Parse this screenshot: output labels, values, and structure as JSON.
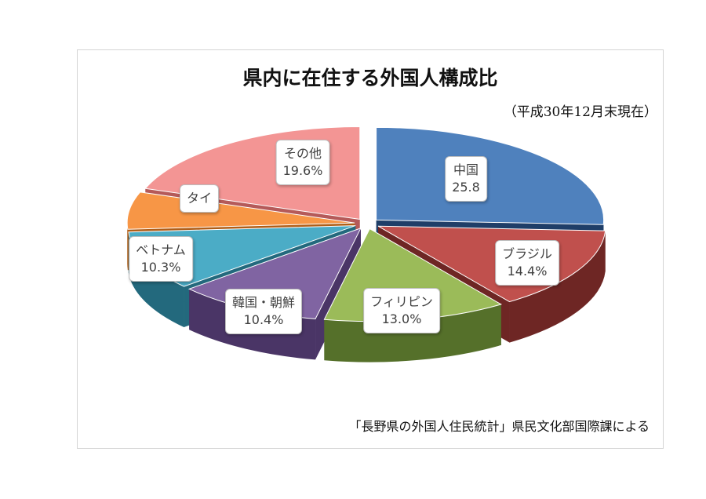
{
  "chart_data": {
    "type": "pie",
    "title": "県内に在住する外国人構成比",
    "subtitle": "（平成30年12月末現在）",
    "source": "「長野県の外国人住民統計」県民文化部国際課による",
    "slices": [
      {
        "label": "中国",
        "value": 25.8,
        "value_text": "25.8",
        "color": "#4f81bd",
        "side": "#1f3e68"
      },
      {
        "label": "ブラジル",
        "value": 14.4,
        "value_text": "14.4%",
        "color": "#c0504d",
        "side": "#6e2624"
      },
      {
        "label": "フィリピン",
        "value": 13.0,
        "value_text": "13.0%",
        "color": "#9bbb59",
        "side": "#55702a"
      },
      {
        "label": "韓国・朝鮮",
        "value": 10.4,
        "value_text": "10.4%",
        "color": "#8064a2",
        "side": "#4a3566"
      },
      {
        "label": "ベトナム",
        "value": 10.3,
        "value_text": "10.3%",
        "color": "#4bacc6",
        "side": "#23697d"
      },
      {
        "label": "タイ",
        "value": 6.5,
        "value_text": "",
        "color": "#f79646",
        "side": "#b05e18"
      },
      {
        "label": "その他",
        "value": 19.6,
        "value_text": "19.6%",
        "color": "#f39594",
        "side": "#b55a59"
      }
    ]
  }
}
